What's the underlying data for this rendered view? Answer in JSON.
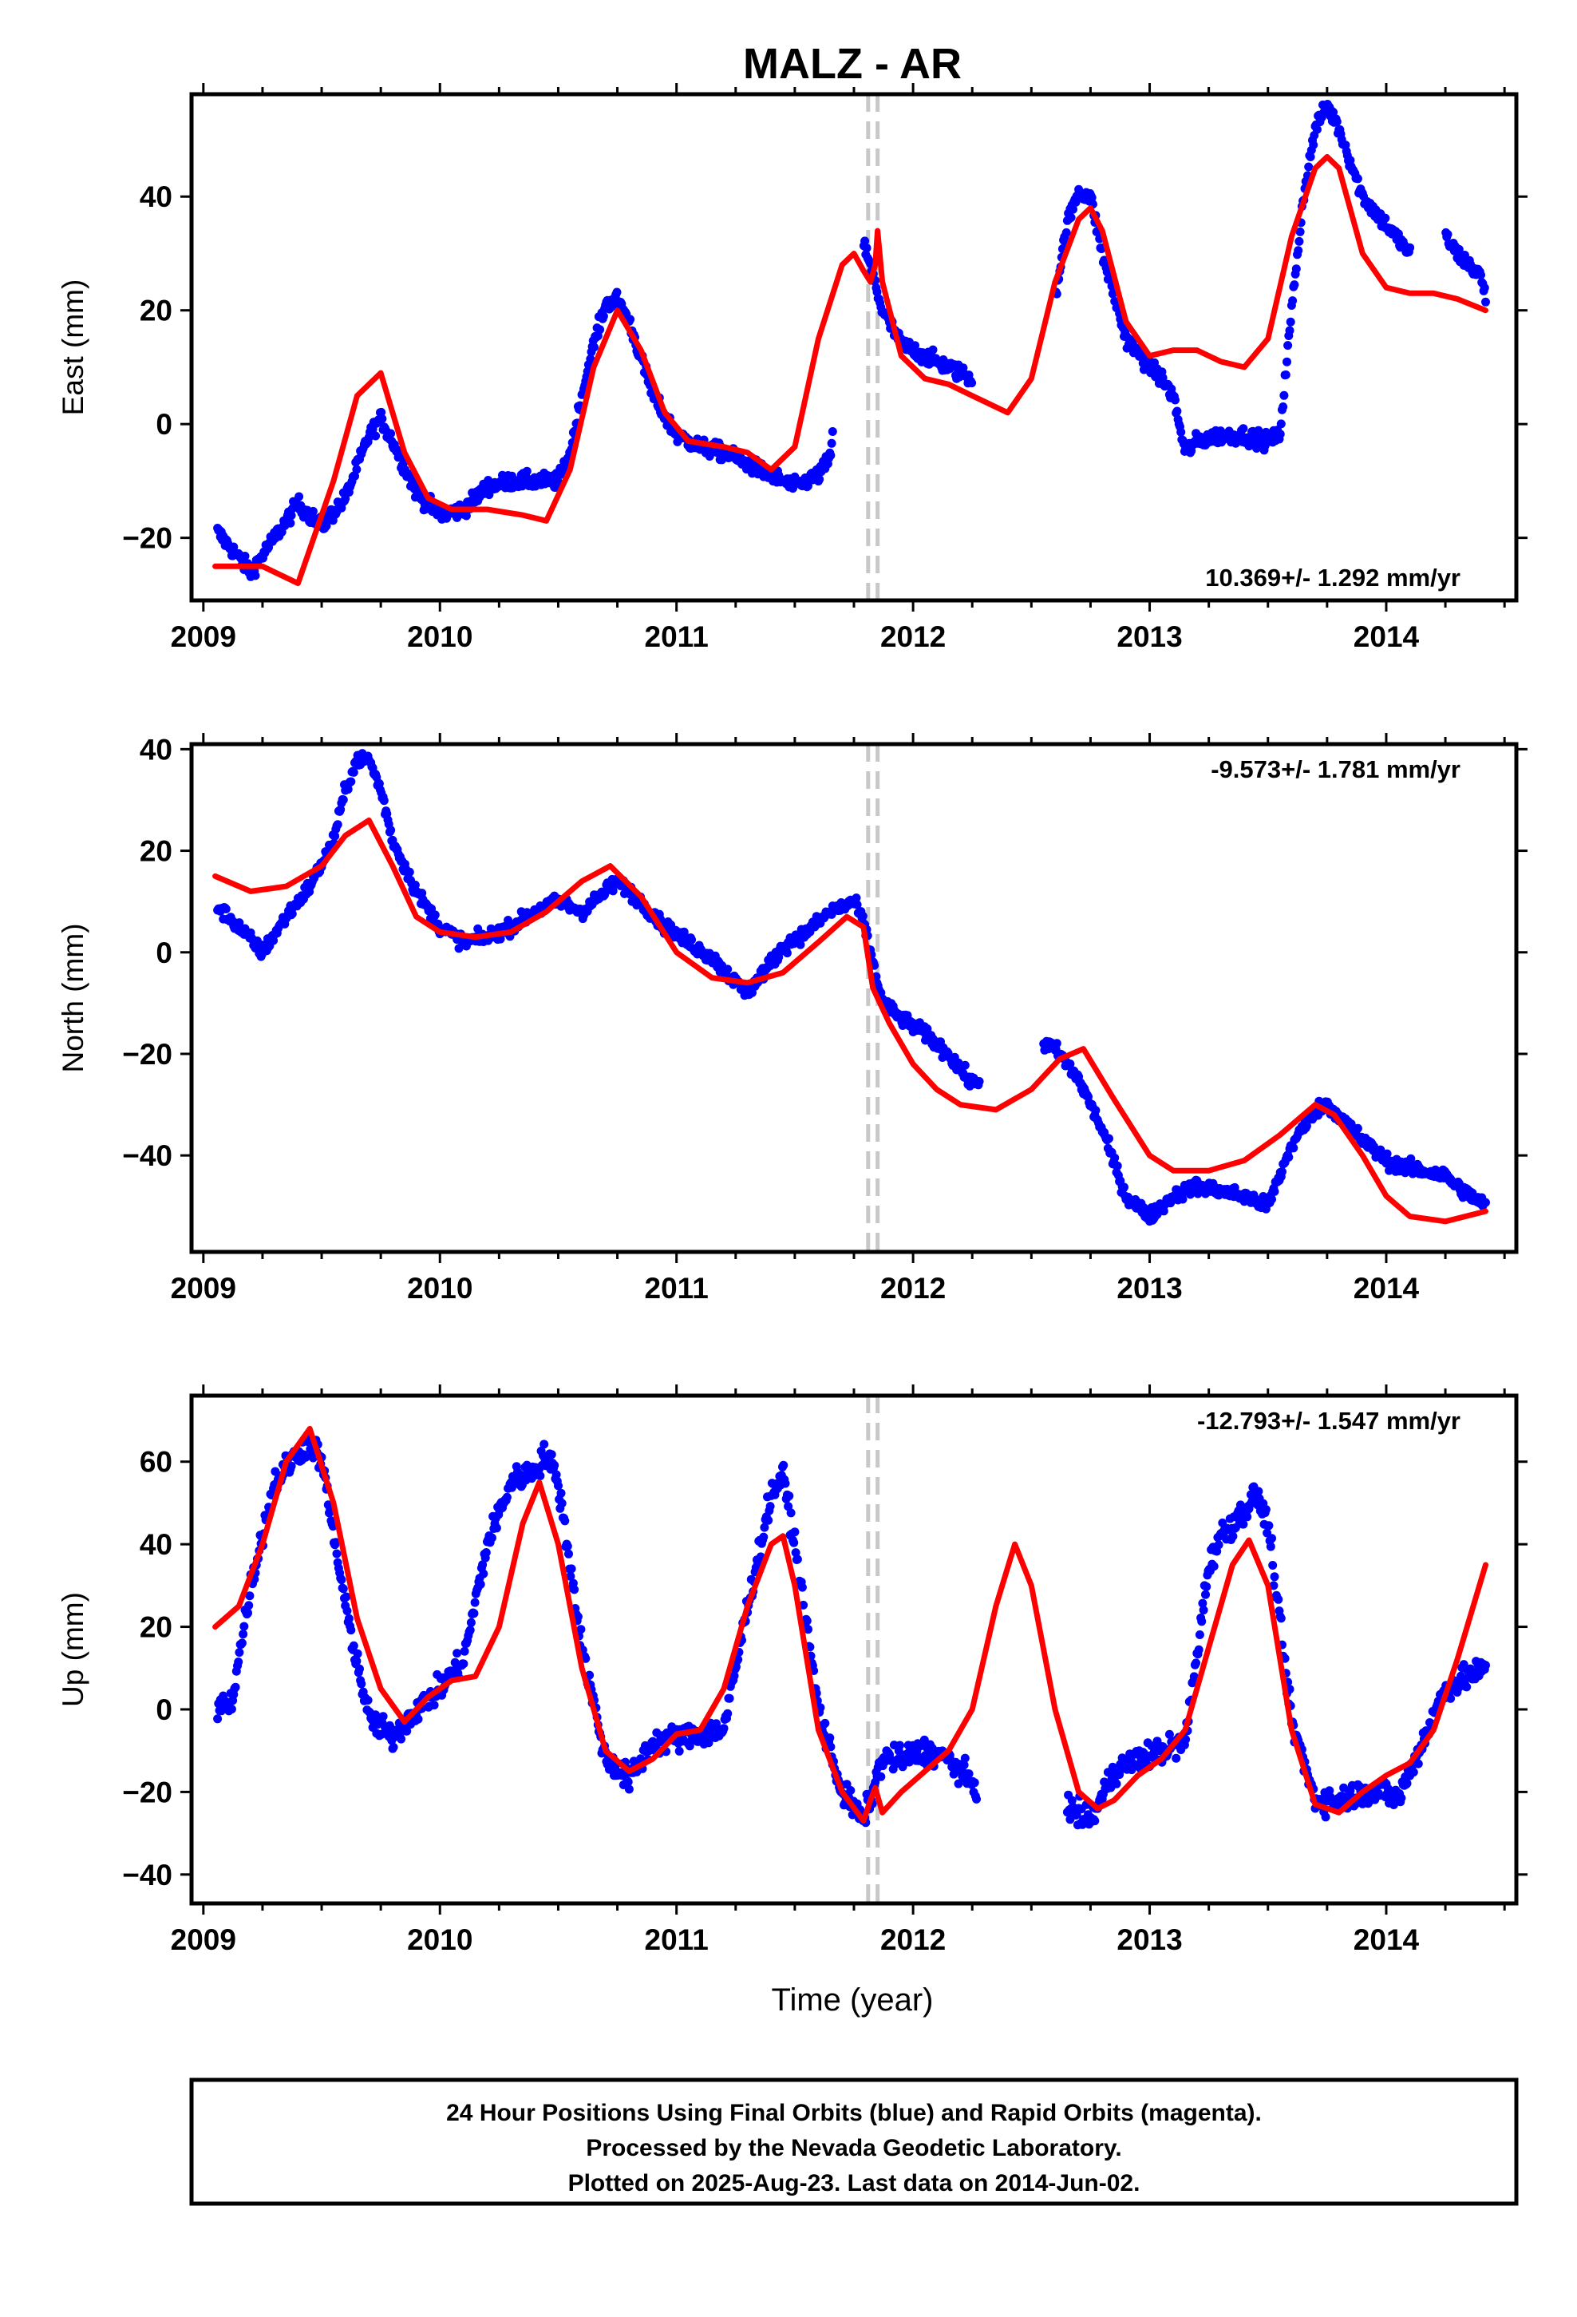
{
  "title": "MALZ - AR",
  "x_axis_label": "Time (year)",
  "footer": {
    "line1": "24 Hour Positions Using Final Orbits (blue) and Rapid Orbits (magenta).",
    "line2": "Processed by the Nevada Geodetic Laboratory.",
    "line3": "Plotted on 2025-Aug-23. Last data on 2014-Jun-02."
  },
  "colors": {
    "data": "#0000ff",
    "model": "#ff0000",
    "break_line": "#c8c8c8",
    "frame": "#000000"
  },
  "chart_data": [
    {
      "type": "scatter",
      "panel": "east",
      "ylabel": "East (mm)",
      "rate_text": "10.369+/- 1.292 mm/yr",
      "rate_position": "bottom-right",
      "xlim": [
        2008.95,
        2014.55
      ],
      "ylim": [
        -31,
        58
      ],
      "xticks": [
        2009,
        2010,
        2011,
        2012,
        2013,
        2014
      ],
      "yticks": [
        -20,
        0,
        20,
        40
      ],
      "breaks": [
        2011.81,
        2011.85
      ],
      "grid": false,
      "series": [
        {
          "role": "observed",
          "style": "points",
          "gap": [
            2011.66,
            2011.79
          ],
          "x": [
            2009.06,
            2009.12,
            2009.2,
            2009.3,
            2009.4,
            2009.5,
            2009.6,
            2009.7,
            2009.75,
            2009.8,
            2009.9,
            2010.0,
            2010.1,
            2010.2,
            2010.3,
            2010.4,
            2010.5,
            2010.55,
            2010.6,
            2010.65,
            2010.7,
            2010.75,
            2010.8,
            2010.9,
            2011.0,
            2011.1,
            2011.2,
            2011.3,
            2011.4,
            2011.5,
            2011.6,
            2011.65,
            2011.7,
            2011.75,
            2011.79,
            2011.87,
            2011.95,
            2012.05,
            2012.15,
            2012.25,
            2012.5,
            2012.6,
            2012.65,
            2012.7,
            2012.75,
            2012.8,
            2012.9,
            2013.0,
            2013.05,
            2013.1,
            2013.15,
            2013.2,
            2013.3,
            2013.4,
            2013.5,
            2013.55,
            2013.6,
            2013.65,
            2013.7,
            2013.75,
            2013.8,
            2013.9,
            2014.0,
            2014.1,
            2014.2,
            2014.25,
            2014.3,
            2014.4,
            2014.42
          ],
          "y": [
            -19,
            -22,
            -26,
            -20,
            -14,
            -18,
            -13,
            -2,
            1,
            -3,
            -12,
            -16,
            -15,
            -11,
            -10,
            -10,
            -10,
            -5,
            5,
            14,
            21,
            22,
            18,
            5,
            -2,
            -4,
            -5,
            -7,
            -9,
            -11,
            -9,
            -6,
            20,
            30,
            32,
            20,
            14,
            12,
            10,
            8,
            null,
            22,
            35,
            41,
            40,
            30,
            15,
            10,
            8,
            5,
            -5,
            -3,
            -2,
            -2,
            -3,
            -2,
            20,
            40,
            52,
            56,
            52,
            40,
            35,
            30,
            null,
            33,
            30,
            26,
            22
          ]
        },
        {
          "role": "model",
          "style": "line",
          "x": [
            2009.05,
            2009.15,
            2009.25,
            2009.4,
            2009.55,
            2009.65,
            2009.75,
            2009.85,
            2009.95,
            2010.05,
            2010.2,
            2010.35,
            2010.45,
            2010.55,
            2010.65,
            2010.75,
            2010.85,
            2010.95,
            2011.05,
            2011.2,
            2011.3,
            2011.4,
            2011.5,
            2011.6,
            2011.7,
            2011.75,
            2011.79,
            2011.82,
            2011.84,
            2011.85,
            2011.87,
            2011.95,
            2012.05,
            2012.15,
            2012.25,
            2012.4,
            2012.5,
            2012.6,
            2012.7,
            2012.75,
            2012.8,
            2012.9,
            2013.0,
            2013.1,
            2013.2,
            2013.3,
            2013.4,
            2013.5,
            2013.6,
            2013.7,
            2013.75,
            2013.8,
            2013.9,
            2014.0,
            2014.1,
            2014.2,
            2014.3,
            2014.42
          ],
          "y": [
            -25,
            -25,
            -25,
            -28,
            -10,
            5,
            9,
            -5,
            -13,
            -15,
            -15,
            -16,
            -17,
            -8,
            10,
            20,
            13,
            2,
            -3,
            -4,
            -5,
            -8,
            -4,
            15,
            28,
            30,
            27,
            25,
            28,
            34,
            25,
            12,
            8,
            7,
            5,
            2,
            8,
            25,
            36,
            38,
            34,
            18,
            12,
            13,
            13,
            11,
            10,
            15,
            33,
            45,
            47,
            45,
            30,
            24,
            23,
            23,
            22,
            20
          ]
        }
      ]
    },
    {
      "type": "scatter",
      "panel": "north",
      "ylabel": "North (mm)",
      "rate_text": "-9.573+/- 1.781 mm/yr",
      "rate_position": "top-right",
      "xlim": [
        2008.95,
        2014.55
      ],
      "ylim": [
        -59,
        41
      ],
      "xticks": [
        2009,
        2010,
        2011,
        2012,
        2013,
        2014
      ],
      "yticks": [
        -40,
        -20,
        0,
        20,
        40
      ],
      "breaks": [
        2011.81,
        2011.85
      ],
      "grid": false,
      "series": [
        {
          "role": "observed",
          "style": "points",
          "gap": [
            2012.28,
            2012.55
          ],
          "x": [
            2009.06,
            2009.15,
            2009.25,
            2009.35,
            2009.45,
            2009.55,
            2009.6,
            2009.65,
            2009.7,
            2009.75,
            2009.8,
            2009.9,
            2010.0,
            2010.1,
            2010.2,
            2010.3,
            2010.4,
            2010.5,
            2010.6,
            2010.7,
            2010.75,
            2010.85,
            2010.95,
            2011.05,
            2011.15,
            2011.25,
            2011.3,
            2011.35,
            2011.45,
            2011.55,
            2011.65,
            2011.75,
            2011.79,
            2011.87,
            2011.95,
            2012.05,
            2012.15,
            2012.25,
            2012.55,
            2012.6,
            2012.7,
            2012.8,
            2012.9,
            2013.0,
            2013.1,
            2013.2,
            2013.3,
            2013.4,
            2013.5,
            2013.6,
            2013.7,
            2013.75,
            2013.8,
            2013.9,
            2014.0,
            2014.05,
            2014.25,
            2014.3,
            2014.42
          ],
          "y": [
            9,
            5,
            0,
            7,
            13,
            22,
            32,
            38,
            38,
            32,
            22,
            12,
            5,
            2,
            3,
            5,
            8,
            10,
            8,
            12,
            14,
            10,
            5,
            2,
            -1,
            -6,
            -8,
            -5,
            1,
            4,
            8,
            10,
            6,
            -10,
            -13,
            -16,
            -20,
            -26,
            -18,
            -19,
            -25,
            -35,
            -48,
            -52,
            -48,
            -46,
            -47,
            -48,
            -50,
            -38,
            -31,
            -30,
            -32,
            -37,
            -41,
            -42,
            -44,
            -46,
            -50
          ]
        },
        {
          "role": "model",
          "style": "line",
          "x": [
            2009.05,
            2009.2,
            2009.35,
            2009.5,
            2009.6,
            2009.7,
            2009.8,
            2009.9,
            2010.0,
            2010.15,
            2010.3,
            2010.45,
            2010.6,
            2010.72,
            2010.85,
            2011.0,
            2011.15,
            2011.3,
            2011.45,
            2011.6,
            2011.72,
            2011.79,
            2011.83,
            2011.9,
            2012.0,
            2012.1,
            2012.2,
            2012.35,
            2012.5,
            2012.62,
            2012.72,
            2012.85,
            2013.0,
            2013.1,
            2013.25,
            2013.4,
            2013.55,
            2013.7,
            2013.78,
            2013.9,
            2014.0,
            2014.1,
            2014.25,
            2014.42
          ],
          "y": [
            15,
            12,
            13,
            17,
            23,
            26,
            17,
            7,
            4,
            3,
            4,
            8,
            14,
            17,
            11,
            0,
            -5,
            -6,
            -4,
            2,
            7,
            5,
            -7,
            -14,
            -22,
            -27,
            -30,
            -31,
            -27,
            -21,
            -19,
            -29,
            -40,
            -43,
            -43,
            -41,
            -36,
            -30,
            -32,
            -40,
            -48,
            -52,
            -53,
            -51
          ]
        }
      ]
    },
    {
      "type": "scatter",
      "panel": "up",
      "ylabel": "Up (mm)",
      "rate_text": "-12.793+/- 1.547 mm/yr",
      "rate_position": "top-right",
      "xlim": [
        2008.95,
        2014.55
      ],
      "ylim": [
        -47,
        76
      ],
      "xticks": [
        2009,
        2010,
        2011,
        2012,
        2013,
        2014
      ],
      "yticks": [
        -40,
        -20,
        0,
        20,
        40,
        60
      ],
      "breaks": [
        2011.81,
        2011.85
      ],
      "grid": false,
      "series": [
        {
          "role": "observed",
          "style": "points",
          "gap": [
            2012.27,
            2012.65
          ],
          "x": [
            2009.06,
            2009.12,
            2009.2,
            2009.3,
            2009.4,
            2009.45,
            2009.5,
            2009.6,
            2009.7,
            2009.8,
            2009.9,
            2010.0,
            2010.1,
            2010.2,
            2010.3,
            2010.4,
            2010.45,
            2010.5,
            2010.6,
            2010.7,
            2010.8,
            2010.9,
            2011.0,
            2011.1,
            2011.2,
            2011.3,
            2011.4,
            2011.45,
            2011.5,
            2011.6,
            2011.7,
            2011.79,
            2011.87,
            2011.95,
            2012.05,
            2012.15,
            2012.25,
            2012.65,
            2012.75,
            2012.85,
            2012.95,
            2013.05,
            2013.15,
            2013.25,
            2013.3,
            2013.4,
            2013.45,
            2013.5,
            2013.6,
            2013.7,
            2013.8,
            2013.9,
            2014.0,
            2014.05,
            2014.1,
            2014.25,
            2014.35,
            2014.42
          ],
          "y": [
            0,
            2,
            30,
            55,
            62,
            65,
            60,
            25,
            -2,
            -7,
            0,
            5,
            12,
            40,
            55,
            58,
            62,
            55,
            15,
            -12,
            -17,
            -8,
            -7,
            -6,
            -5,
            25,
            52,
            57,
            40,
            0,
            -20,
            -27,
            -12,
            -12,
            -10,
            -12,
            -18,
            -24,
            -27,
            -15,
            -12,
            -10,
            -8,
            35,
            42,
            48,
            52,
            45,
            -3,
            -22,
            -22,
            -20,
            -20,
            -22,
            -15,
            5,
            8,
            10
          ]
        },
        {
          "role": "model",
          "style": "line",
          "x": [
            2009.05,
            2009.15,
            2009.25,
            2009.35,
            2009.45,
            2009.55,
            2009.65,
            2009.75,
            2009.85,
            2009.95,
            2010.05,
            2010.15,
            2010.25,
            2010.35,
            2010.42,
            2010.5,
            2010.6,
            2010.7,
            2010.8,
            2010.9,
            2011.0,
            2011.1,
            2011.2,
            2011.3,
            2011.4,
            2011.45,
            2011.5,
            2011.6,
            2011.7,
            2011.79,
            2011.82,
            2011.84,
            2011.87,
            2011.95,
            2012.05,
            2012.15,
            2012.25,
            2012.35,
            2012.43,
            2012.5,
            2012.6,
            2012.7,
            2012.78,
            2012.85,
            2012.95,
            2013.05,
            2013.15,
            2013.25,
            2013.35,
            2013.42,
            2013.5,
            2013.6,
            2013.7,
            2013.8,
            2013.9,
            2014.0,
            2014.1,
            2014.2,
            2014.3,
            2014.42
          ],
          "y": [
            20,
            25,
            40,
            60,
            68,
            50,
            22,
            5,
            -3,
            3,
            7,
            8,
            20,
            45,
            55,
            40,
            10,
            -10,
            -15,
            -12,
            -6,
            -5,
            5,
            25,
            40,
            42,
            30,
            -5,
            -20,
            -27,
            -22,
            -19,
            -25,
            -20,
            -15,
            -10,
            0,
            25,
            40,
            30,
            0,
            -20,
            -24,
            -22,
            -16,
            -12,
            -5,
            15,
            35,
            41,
            30,
            -5,
            -23,
            -25,
            -20,
            -16,
            -13,
            -5,
            12,
            35
          ]
        }
      ]
    }
  ]
}
